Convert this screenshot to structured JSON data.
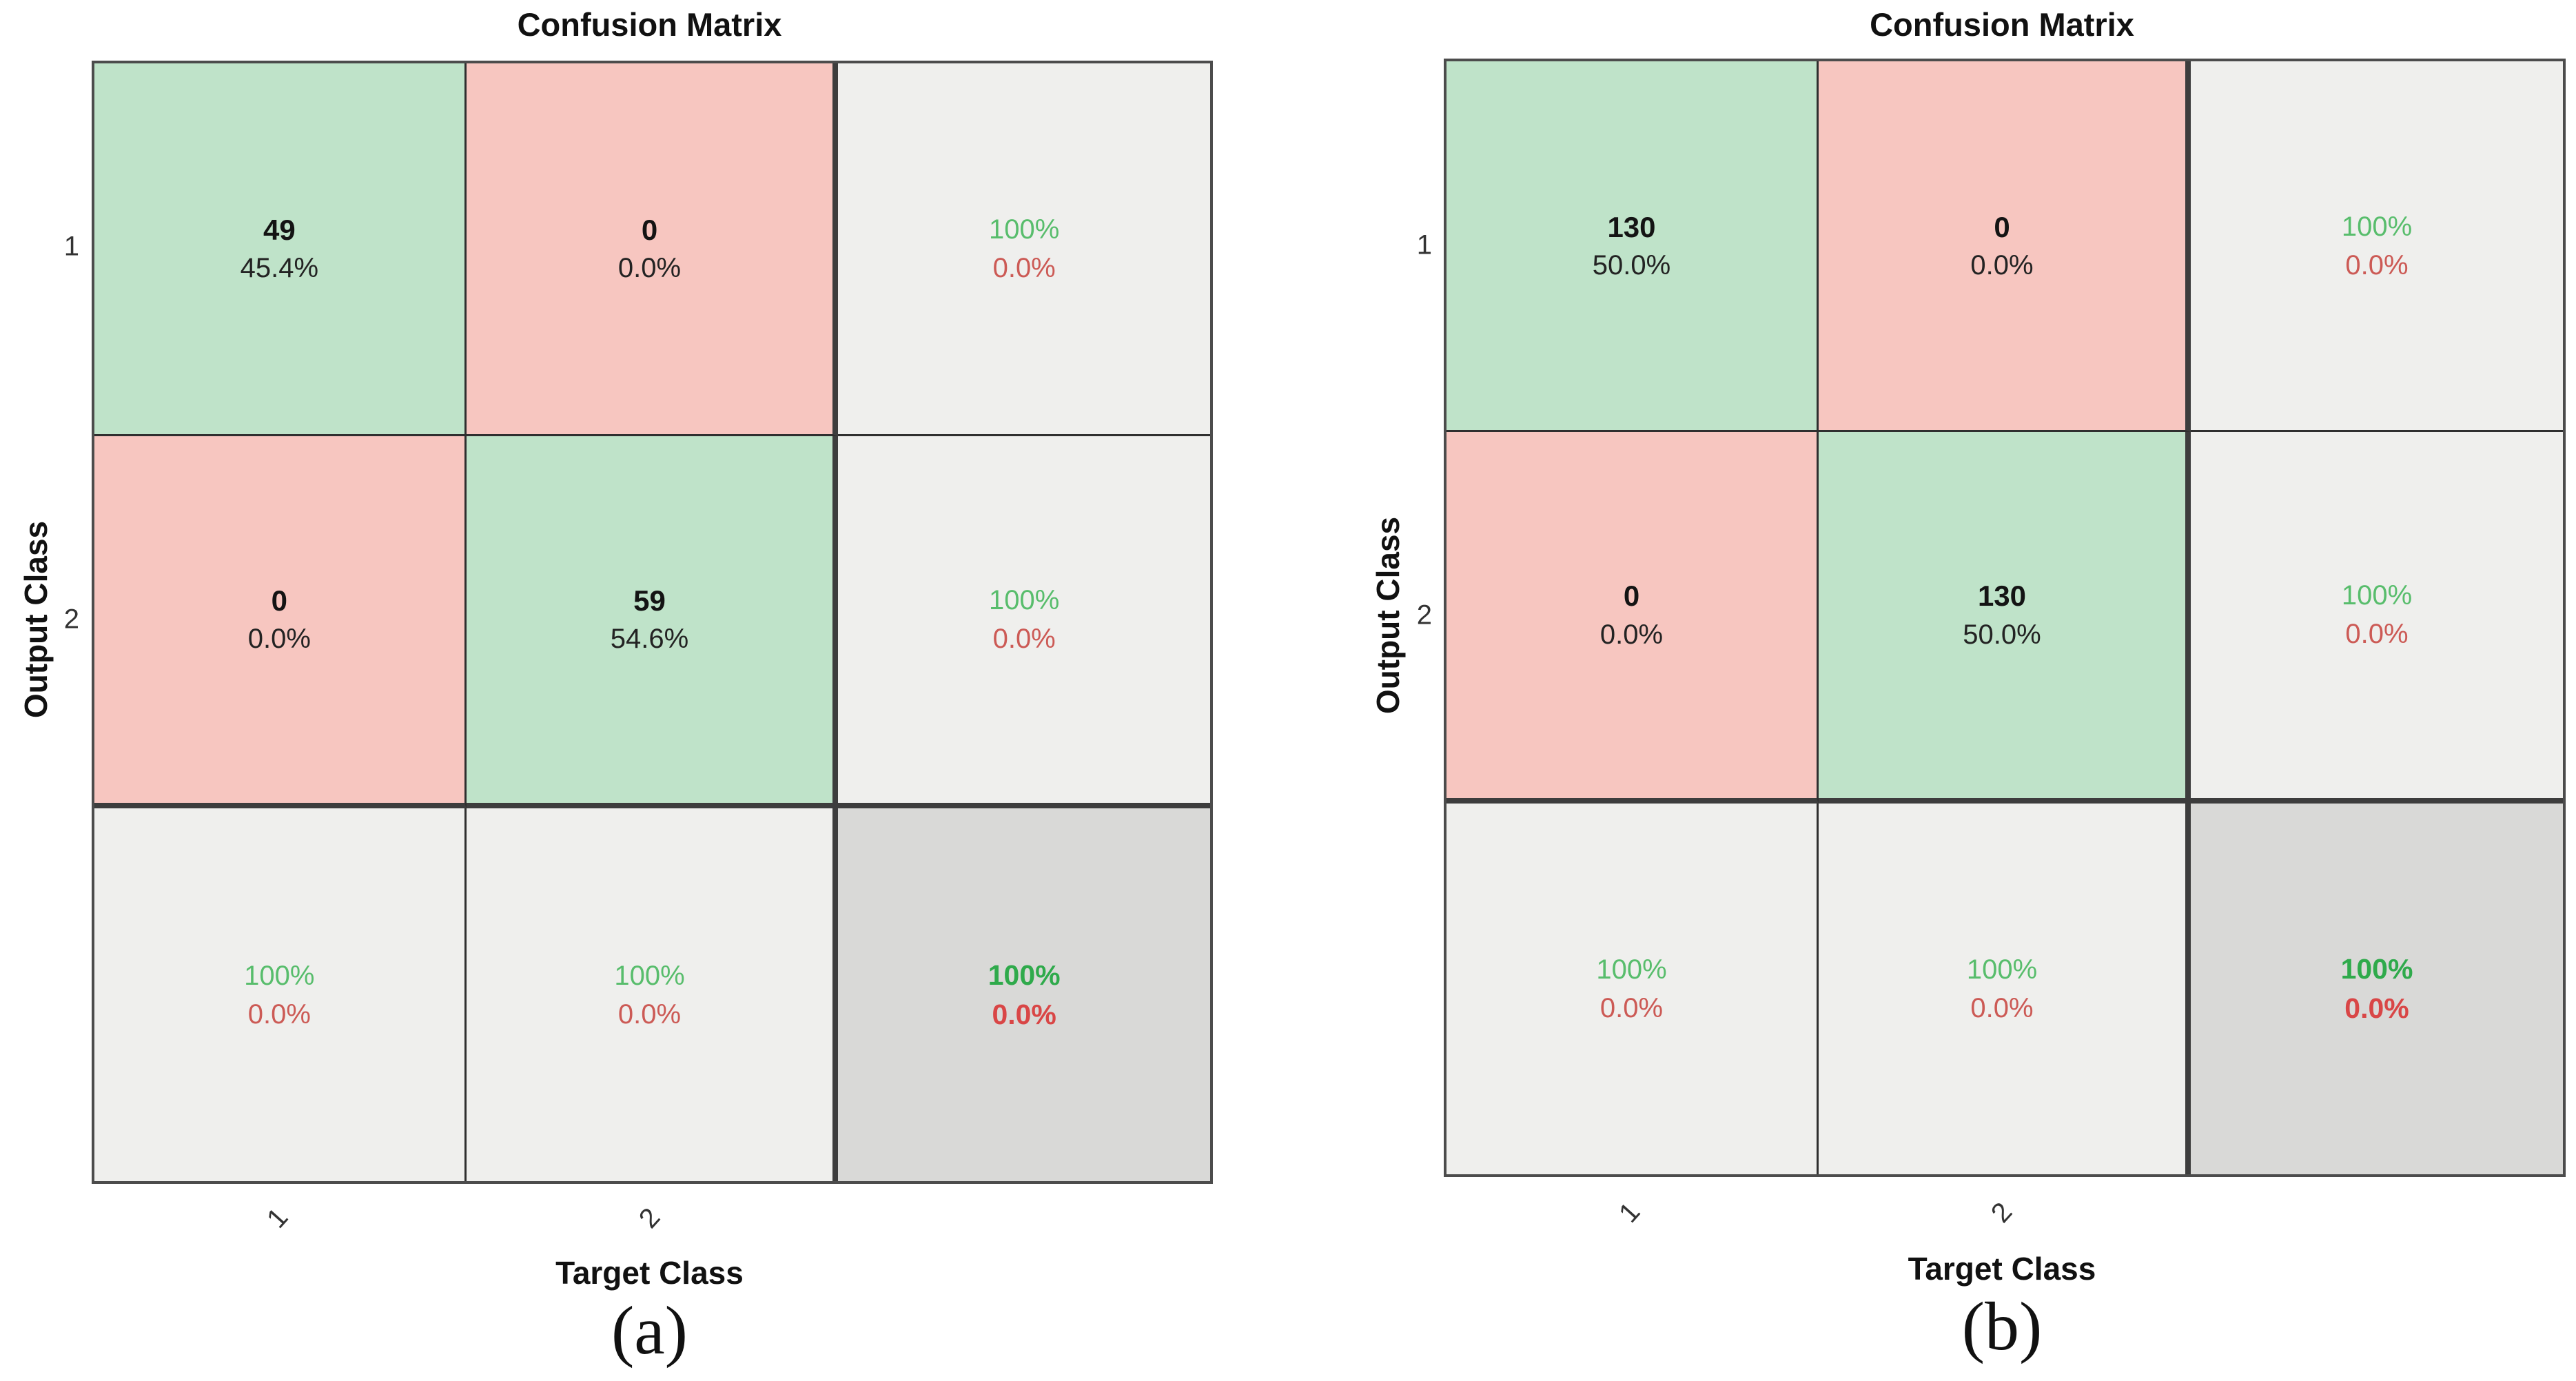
{
  "chart_data": [
    {
      "type": "heatmap",
      "subtype": "confusion-matrix",
      "title": "Confusion Matrix",
      "xlabel": "Target Class",
      "ylabel": "Output Class",
      "caption": "(a)",
      "classes": [
        "1",
        "2"
      ],
      "matrix_counts": [
        [
          49,
          0
        ],
        [
          0,
          59
        ]
      ],
      "matrix_percent_of_total": [
        [
          "45.4%",
          "0.0%"
        ],
        [
          "0.0%",
          "54.6%"
        ]
      ],
      "row_summary_green_red": [
        [
          "100%",
          "0.0%"
        ],
        [
          "100%",
          "0.0%"
        ]
      ],
      "col_summary_green_red": [
        [
          "100%",
          "0.0%"
        ],
        [
          "100%",
          "0.0%"
        ]
      ],
      "overall_green_red": [
        "100%",
        "0.0%"
      ],
      "legend_position": "none",
      "grid": "on"
    },
    {
      "type": "heatmap",
      "subtype": "confusion-matrix",
      "title": "Confusion Matrix",
      "xlabel": "Target Class",
      "ylabel": "Output Class",
      "caption": "(b)",
      "classes": [
        "1",
        "2"
      ],
      "matrix_counts": [
        [
          130,
          0
        ],
        [
          0,
          130
        ]
      ],
      "matrix_percent_of_total": [
        [
          "50.0%",
          "0.0%"
        ],
        [
          "0.0%",
          "50.0%"
        ]
      ],
      "row_summary_green_red": [
        [
          "100%",
          "0.0%"
        ],
        [
          "100%",
          "0.0%"
        ]
      ],
      "col_summary_green_red": [
        [
          "100%",
          "0.0%"
        ],
        [
          "100%",
          "0.0%"
        ]
      ],
      "overall_green_red": [
        "100%",
        "0.0%"
      ],
      "legend_position": "none",
      "grid": "on"
    }
  ],
  "panels": {
    "a": {
      "title": "Confusion Matrix",
      "y_label": "Output Class",
      "x_label": "Target Class",
      "caption": "(a)",
      "y_ticks": {
        "t1": "1",
        "t2": "2"
      },
      "x_ticks": {
        "t1": "1",
        "t2": "2"
      },
      "cells": {
        "r1c1": {
          "count": "49",
          "percent": "45.4%"
        },
        "r1c2": {
          "count": "0",
          "percent": "0.0%"
        },
        "r1c3": {
          "line1": "100%",
          "line2": "0.0%"
        },
        "r2c1": {
          "count": "0",
          "percent": "0.0%"
        },
        "r2c2": {
          "count": "59",
          "percent": "54.6%"
        },
        "r2c3": {
          "line1": "100%",
          "line2": "0.0%"
        },
        "r3c1": {
          "line1": "100%",
          "line2": "0.0%"
        },
        "r3c2": {
          "line1": "100%",
          "line2": "0.0%"
        },
        "r3c3": {
          "line1": "100%",
          "line2": "0.0%"
        }
      }
    },
    "b": {
      "title": "Confusion Matrix",
      "y_label": "Output Class",
      "x_label": "Target Class",
      "caption": "(b)",
      "y_ticks": {
        "t1": "1",
        "t2": "2"
      },
      "x_ticks": {
        "t1": "1",
        "t2": "2"
      },
      "cells": {
        "r1c1": {
          "count": "130",
          "percent": "50.0%"
        },
        "r1c2": {
          "count": "0",
          "percent": "0.0%"
        },
        "r1c3": {
          "line1": "100%",
          "line2": "0.0%"
        },
        "r2c1": {
          "count": "0",
          "percent": "0.0%"
        },
        "r2c2": {
          "count": "130",
          "percent": "50.0%"
        },
        "r2c3": {
          "line1": "100%",
          "line2": "0.0%"
        },
        "r3c1": {
          "line1": "100%",
          "line2": "0.0%"
        },
        "r3c2": {
          "line1": "100%",
          "line2": "0.0%"
        },
        "r3c3": {
          "line1": "100%",
          "line2": "0.0%"
        }
      }
    }
  },
  "colors": {
    "correct_cell_bg": "#bfe3c9",
    "incorrect_cell_bg": "#f7c6c0",
    "summary_cell_bg": "#efefed",
    "total_cell_bg": "#d9d9d7",
    "summary_green_text": "#58bd6c",
    "summary_red_text": "#cc5a55",
    "grid_line": "#2f2f2f"
  }
}
